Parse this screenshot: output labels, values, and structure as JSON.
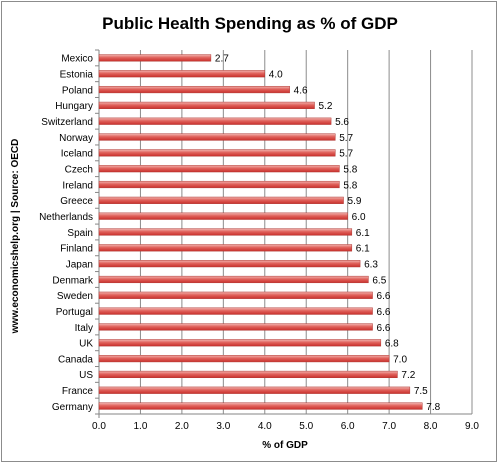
{
  "chart_data": {
    "type": "bar",
    "orientation": "horizontal",
    "title": "Public Health Spending as % of GDP",
    "xlabel": "% of GDP",
    "ylabel": "www.economicshelp.org | Source: OECD",
    "xlim": [
      0,
      9
    ],
    "xticks": [
      "0.0",
      "1.0",
      "2.0",
      "3.0",
      "4.0",
      "5.0",
      "6.0",
      "7.0",
      "8.0",
      "9.0"
    ],
    "grid": "vertical",
    "legend": "none",
    "bar_color": "#d9534f",
    "categories": [
      "Mexico",
      "Estonia",
      "Poland",
      "Hungary",
      "Switzerland",
      "Norway",
      "Iceland",
      "Czech",
      "Ireland",
      "Greece",
      "Netherlands",
      "Spain",
      "Finland",
      "Japan",
      "Denmark",
      "Sweden",
      "Portugal",
      "Italy",
      "UK",
      "Canada",
      "US",
      "France",
      "Germany"
    ],
    "values": [
      2.7,
      4.0,
      4.6,
      5.2,
      5.6,
      5.7,
      5.7,
      5.8,
      5.8,
      5.9,
      6.0,
      6.1,
      6.1,
      6.3,
      6.5,
      6.6,
      6.6,
      6.6,
      6.8,
      7.0,
      7.2,
      7.5,
      7.8
    ],
    "value_labels": [
      "2.7",
      "4.0",
      "4.6",
      "5.2",
      "5.6",
      "5.7",
      "5.7",
      "5.8",
      "5.8",
      "5.9",
      "6.0",
      "6.1",
      "6.1",
      "6.3",
      "6.5",
      "6.6",
      "6.6",
      "6.6",
      "6.8",
      "7.0",
      "7.2",
      "7.5",
      "7.8"
    ]
  }
}
